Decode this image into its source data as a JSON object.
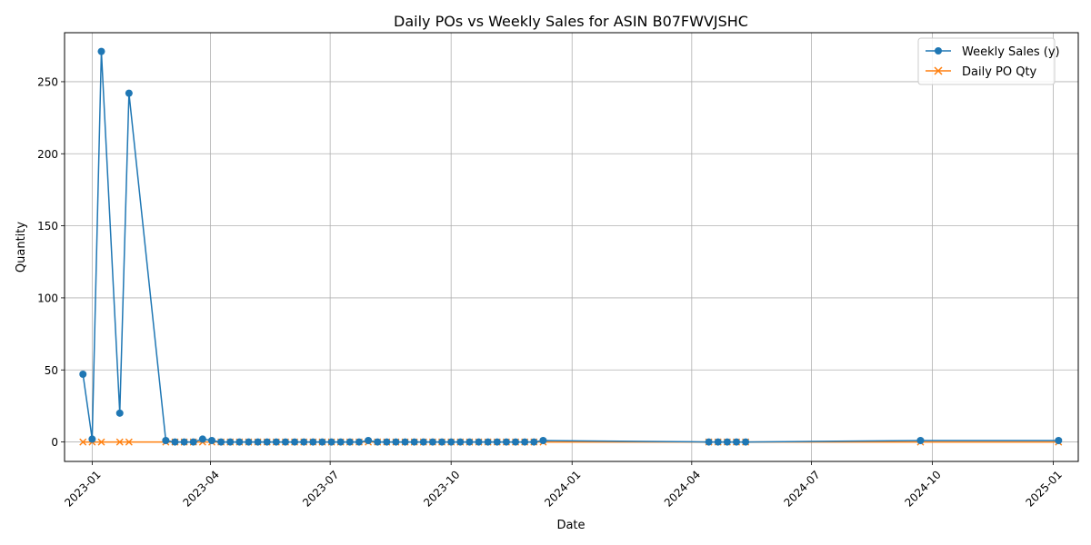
{
  "chart_data": {
    "type": "line",
    "title": "Daily POs vs Weekly Sales for ASIN B07FWVJSHC",
    "xlabel": "Date",
    "ylabel": "Quantity",
    "xlim": [
      "2022-12-11",
      "2025-01-20"
    ],
    "ylim": [
      -13.5,
      284
    ],
    "grid": true,
    "legend_position": "top-right",
    "x_ticks": [
      {
        "date": "2023-01-01",
        "label": "2023-01"
      },
      {
        "date": "2023-04-01",
        "label": "2023-04"
      },
      {
        "date": "2023-07-01",
        "label": "2023-07"
      },
      {
        "date": "2023-10-01",
        "label": "2023-10"
      },
      {
        "date": "2024-01-01",
        "label": "2024-01"
      },
      {
        "date": "2024-04-01",
        "label": "2024-04"
      },
      {
        "date": "2024-07-01",
        "label": "2024-07"
      },
      {
        "date": "2024-10-01",
        "label": "2024-10"
      },
      {
        "date": "2025-01-01",
        "label": "2025-01"
      }
    ],
    "y_ticks": [
      0,
      50,
      100,
      150,
      200,
      250
    ],
    "series": [
      {
        "name": "Weekly Sales (y)",
        "color": "#1f77b4",
        "marker": "circle",
        "points": [
          [
            "2022-12-25",
            47
          ],
          [
            "2023-01-01",
            2
          ],
          [
            "2023-01-08",
            271
          ],
          [
            "2023-01-22",
            20
          ],
          [
            "2023-01-29",
            242
          ],
          [
            "2023-02-26",
            1
          ],
          [
            "2023-03-05",
            0
          ],
          [
            "2023-03-12",
            0
          ],
          [
            "2023-03-19",
            0
          ],
          [
            "2023-03-26",
            2
          ],
          [
            "2023-04-02",
            1
          ],
          [
            "2023-04-09",
            0
          ],
          [
            "2023-04-16",
            0
          ],
          [
            "2023-04-23",
            0
          ],
          [
            "2023-04-30",
            0
          ],
          [
            "2023-05-07",
            0
          ],
          [
            "2023-05-14",
            0
          ],
          [
            "2023-05-21",
            0
          ],
          [
            "2023-05-28",
            0
          ],
          [
            "2023-06-04",
            0
          ],
          [
            "2023-06-11",
            0
          ],
          [
            "2023-06-18",
            0
          ],
          [
            "2023-06-25",
            0
          ],
          [
            "2023-07-02",
            0
          ],
          [
            "2023-07-09",
            0
          ],
          [
            "2023-07-16",
            0
          ],
          [
            "2023-07-23",
            0
          ],
          [
            "2023-07-30",
            1
          ],
          [
            "2023-08-06",
            0
          ],
          [
            "2023-08-13",
            0
          ],
          [
            "2023-08-20",
            0
          ],
          [
            "2023-08-27",
            0
          ],
          [
            "2023-09-03",
            0
          ],
          [
            "2023-09-10",
            0
          ],
          [
            "2023-09-17",
            0
          ],
          [
            "2023-09-24",
            0
          ],
          [
            "2023-10-01",
            0
          ],
          [
            "2023-10-08",
            0
          ],
          [
            "2023-10-15",
            0
          ],
          [
            "2023-10-22",
            0
          ],
          [
            "2023-10-29",
            0
          ],
          [
            "2023-11-05",
            0
          ],
          [
            "2023-11-12",
            0
          ],
          [
            "2023-11-19",
            0
          ],
          [
            "2023-11-26",
            0
          ],
          [
            "2023-12-03",
            0
          ],
          [
            "2023-12-10",
            1
          ],
          [
            "2024-04-14",
            0
          ],
          [
            "2024-04-21",
            0
          ],
          [
            "2024-04-28",
            0
          ],
          [
            "2024-05-05",
            0
          ],
          [
            "2024-05-12",
            0
          ],
          [
            "2024-09-22",
            1
          ],
          [
            "2025-01-05",
            1
          ]
        ]
      },
      {
        "name": "Daily PO Qty",
        "color": "#ff7f0e",
        "marker": "x",
        "points": [
          [
            "2022-12-25",
            0
          ],
          [
            "2023-01-01",
            0
          ],
          [
            "2023-01-08",
            0
          ],
          [
            "2023-01-22",
            0
          ],
          [
            "2023-01-29",
            0
          ],
          [
            "2023-02-26",
            0
          ],
          [
            "2023-03-05",
            0
          ],
          [
            "2023-03-12",
            0
          ],
          [
            "2023-03-19",
            0
          ],
          [
            "2023-03-26",
            0
          ],
          [
            "2023-04-02",
            0
          ],
          [
            "2023-04-09",
            0
          ],
          [
            "2023-04-16",
            0
          ],
          [
            "2023-04-23",
            0
          ],
          [
            "2023-04-30",
            0
          ],
          [
            "2023-05-07",
            0
          ],
          [
            "2023-05-14",
            0
          ],
          [
            "2023-05-21",
            0
          ],
          [
            "2023-05-28",
            0
          ],
          [
            "2023-06-04",
            0
          ],
          [
            "2023-06-11",
            0
          ],
          [
            "2023-06-18",
            0
          ],
          [
            "2023-06-25",
            0
          ],
          [
            "2023-07-02",
            0
          ],
          [
            "2023-07-09",
            0
          ],
          [
            "2023-07-16",
            0
          ],
          [
            "2023-07-23",
            0
          ],
          [
            "2023-07-30",
            0
          ],
          [
            "2023-08-06",
            0
          ],
          [
            "2023-08-13",
            0
          ],
          [
            "2023-08-20",
            0
          ],
          [
            "2023-08-27",
            0
          ],
          [
            "2023-09-03",
            0
          ],
          [
            "2023-09-10",
            0
          ],
          [
            "2023-09-17",
            0
          ],
          [
            "2023-09-24",
            0
          ],
          [
            "2023-10-01",
            0
          ],
          [
            "2023-10-08",
            0
          ],
          [
            "2023-10-15",
            0
          ],
          [
            "2023-10-22",
            0
          ],
          [
            "2023-10-29",
            0
          ],
          [
            "2023-11-05",
            0
          ],
          [
            "2023-11-12",
            0
          ],
          [
            "2023-11-19",
            0
          ],
          [
            "2023-11-26",
            0
          ],
          [
            "2023-12-03",
            0
          ],
          [
            "2023-12-10",
            0
          ],
          [
            "2024-04-14",
            0
          ],
          [
            "2024-04-21",
            0
          ],
          [
            "2024-04-28",
            0
          ],
          [
            "2024-05-05",
            0
          ],
          [
            "2024-05-12",
            0
          ],
          [
            "2024-09-22",
            0
          ],
          [
            "2025-01-05",
            0
          ]
        ]
      }
    ]
  }
}
